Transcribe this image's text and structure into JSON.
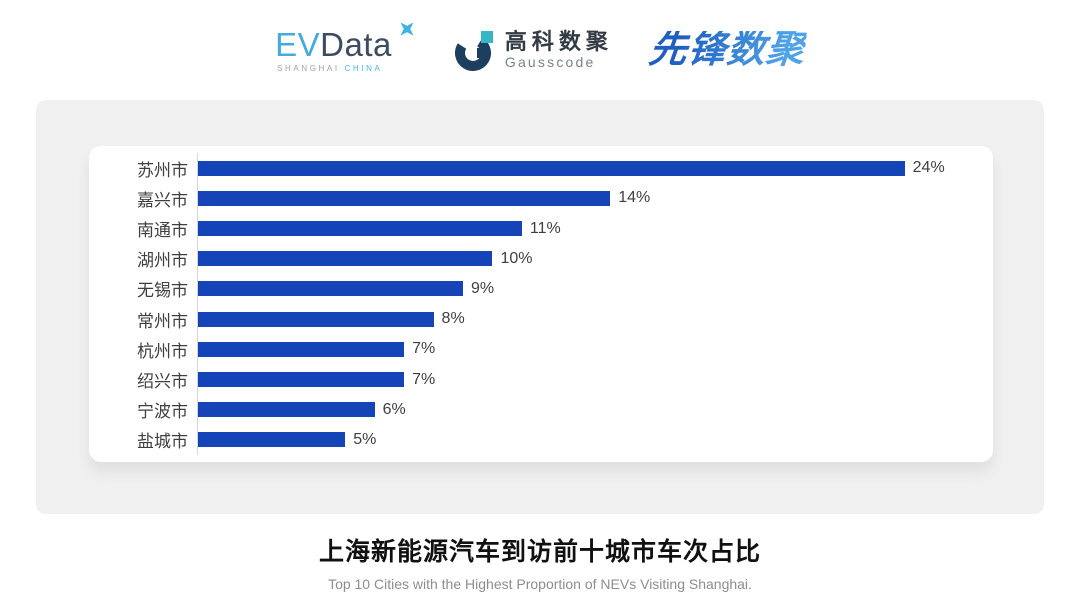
{
  "header": {
    "logos": {
      "evdata": {
        "part_ev": "EV",
        "part_data": "Data",
        "sub_shanghai": "SHANGHAI",
        "sub_china": "CHINA",
        "colors": {
          "ev": "#45AADF",
          "data": "#3E4C61",
          "star": "#3EB3E6",
          "shanghai": "#9AA3AD",
          "china": "#45B8E6"
        }
      },
      "gausscode": {
        "name_cn": "高科数聚",
        "name_en": "Gausscode",
        "colors": {
          "icon_main": "#1D3E5F",
          "icon_accent": "#35B5C5",
          "cn": "#333B44",
          "en": "#79838C"
        }
      },
      "pioneer": {
        "text": "先锋数聚",
        "color": "#2B7CD4"
      }
    }
  },
  "chart_data": {
    "type": "bar",
    "orientation": "horizontal",
    "title": "上海新能源汽车到访前十城市车次占比",
    "subtitle": "Top 10 Cities with the Highest Proportion of  NEVs Visiting Shanghai.",
    "categories": [
      "苏州市",
      "嘉兴市",
      "南通市",
      "湖州市",
      "无锡市",
      "常州市",
      "杭州市",
      "绍兴市",
      "宁波市",
      "盐城市"
    ],
    "values": [
      24,
      14,
      11,
      10,
      9,
      8,
      7,
      7,
      6,
      5
    ],
    "value_labels": [
      "24%",
      "14%",
      "11%",
      "10%",
      "9%",
      "8%",
      "7%",
      "7%",
      "6%",
      "5%"
    ],
    "unit": "%",
    "axis_max": 27,
    "bar_color": "#1544B9",
    "axis_line_color": "#D6D6D6",
    "grid": false,
    "legend": false,
    "value_label_position": "right-of-bar"
  },
  "footer": {
    "title": "上海新能源汽车到访前十城市车次占比",
    "subtitle": "Top 10 Cities with the Highest Proportion of  NEVs Visiting Shanghai."
  }
}
